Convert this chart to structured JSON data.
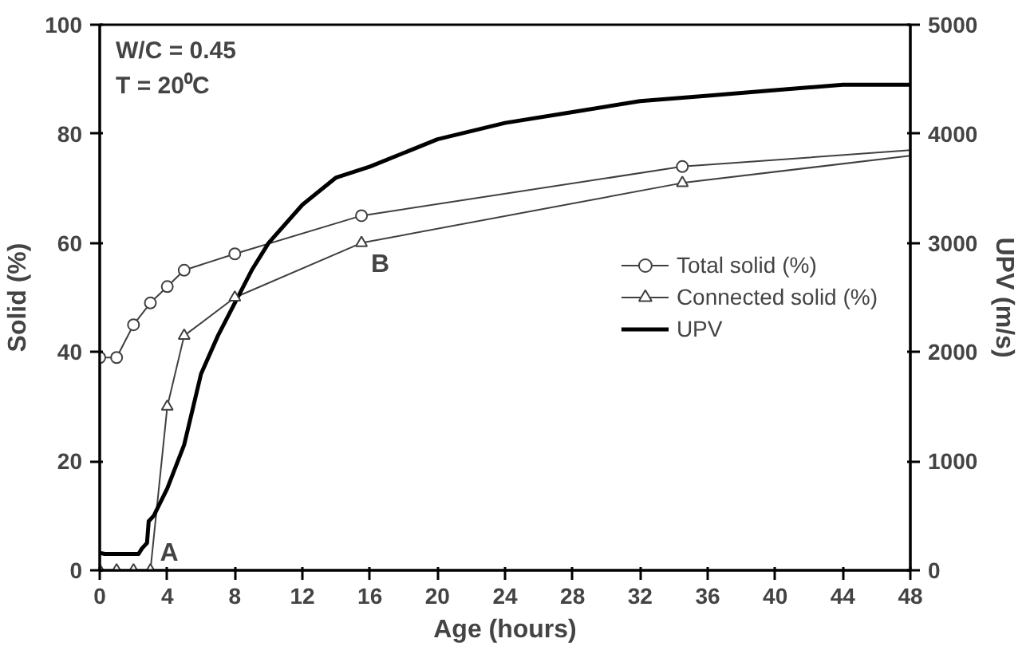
{
  "chart_data": {
    "type": "line",
    "xlabel": "Age (hours)",
    "ylabel": "Solid (%)",
    "y2label": "UPV (m/s)",
    "xlim": [
      0,
      48
    ],
    "xticks": [
      0,
      4,
      8,
      12,
      16,
      20,
      24,
      28,
      32,
      36,
      40,
      44,
      48
    ],
    "ylim": [
      0,
      100
    ],
    "yticks": [
      0,
      20,
      40,
      60,
      80,
      100
    ],
    "y2lim": [
      0,
      5000
    ],
    "y2ticks": [
      0,
      1000,
      2000,
      3000,
      4000,
      5000
    ],
    "grid": false,
    "legend": "right",
    "annotations": [
      "W/C = 0.45",
      "T = 20⁰C",
      {
        "text": "A",
        "x": 3,
        "y": 0
      },
      {
        "text": "B",
        "x": 15.5,
        "y": 60
      }
    ],
    "series": [
      {
        "name": "Total solid (%)",
        "color": "#404040",
        "marker": "circle",
        "x": [
          0,
          1,
          2,
          3,
          4,
          5,
          8,
          15.5,
          34.5,
          48
        ],
        "values": [
          39,
          39,
          45,
          49,
          52,
          55,
          58,
          65,
          74,
          77
        ]
      },
      {
        "name": "Connected solid (%)",
        "color": "#404040",
        "marker": "triangle",
        "x": [
          0,
          1,
          2,
          3,
          4,
          5,
          8,
          15.5,
          34.5,
          48
        ],
        "values": [
          0,
          0,
          0,
          0,
          30,
          43,
          50,
          60,
          71,
          76
        ]
      },
      {
        "name": "UPV",
        "color": "#000000",
        "marker": "none",
        "axis": "y2",
        "x": [
          0,
          0.3,
          1,
          2.3,
          2.5,
          2.8,
          2.9,
          3.2,
          4,
          5,
          6,
          7,
          8,
          9,
          10,
          12,
          14,
          16,
          20,
          24,
          28,
          32,
          36,
          40,
          44,
          48
        ],
        "values": [
          160,
          150,
          150,
          150,
          200,
          250,
          450,
          500,
          750,
          1150,
          1800,
          2150,
          2450,
          2750,
          3000,
          3350,
          3600,
          3700,
          3950,
          4100,
          4200,
          4300,
          4350,
          4400,
          4450,
          4450
        ]
      }
    ]
  }
}
